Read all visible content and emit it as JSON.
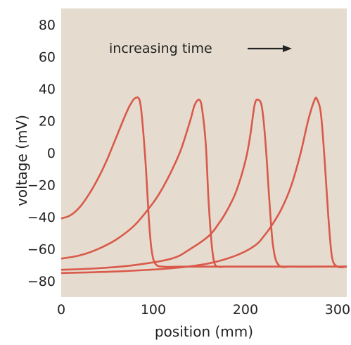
{
  "chart_data": {
    "type": "line",
    "xlabel": "position (mm)",
    "ylabel": "voltage (mV)",
    "xlim": [
      0,
      310
    ],
    "ylim": [
      -90,
      90
    ],
    "x_ticks": [
      0,
      100,
      200,
      300
    ],
    "y_ticks": [
      80,
      60,
      40,
      20,
      0,
      -20,
      -40,
      -60,
      -80
    ],
    "x_tick_labels": [
      "0",
      "100",
      "200",
      "300"
    ],
    "y_tick_labels": [
      "80",
      "60",
      "40",
      "20",
      "0",
      "−20",
      "−40",
      "−60",
      "−80"
    ],
    "grid": false,
    "annotation": {
      "text": "increasing time",
      "arrow": "right"
    },
    "colors": {
      "background": "#e5dccf",
      "line": "#d9594a"
    },
    "series": [
      {
        "x": [
          0,
          10,
          20,
          30,
          40,
          50,
          60,
          70,
          75,
          80,
          85,
          88,
          92,
          95,
          98,
          102,
          110,
          130,
          160,
          200,
          250,
          310
        ],
        "y": [
          -41,
          -39,
          -34,
          -26,
          -16,
          -4,
          10,
          24,
          30,
          34,
          33,
          20,
          -10,
          -40,
          -60,
          -69,
          -71,
          -71,
          -71,
          -71,
          -71,
          -71
        ]
      },
      {
        "x": [
          0,
          20,
          40,
          60,
          80,
          100,
          110,
          120,
          130,
          140,
          145,
          150,
          153,
          157,
          160,
          163,
          166,
          170,
          180,
          220,
          260,
          310
        ],
        "y": [
          -66,
          -64,
          -60,
          -54,
          -45,
          -31,
          -22,
          -11,
          2,
          20,
          30,
          33,
          27,
          5,
          -30,
          -55,
          -68,
          -71,
          -71,
          -71,
          -71,
          -71
        ]
      },
      {
        "x": [
          0,
          40,
          80,
          120,
          140,
          160,
          170,
          180,
          190,
          200,
          205,
          210,
          214,
          218,
          222,
          226,
          230,
          236,
          250,
          280,
          310
        ],
        "y": [
          -73,
          -72,
          -70,
          -66,
          -60,
          -52,
          -45,
          -36,
          -24,
          -5,
          10,
          30,
          33,
          28,
          5,
          -30,
          -58,
          -70,
          -71,
          -71,
          -71
        ]
      },
      {
        "x": [
          0,
          60,
          120,
          160,
          190,
          210,
          220,
          230,
          240,
          250,
          260,
          268,
          275,
          278,
          282,
          286,
          290,
          294,
          300,
          310
        ],
        "y": [
          -75,
          -74,
          -72,
          -69,
          -64,
          -58,
          -52,
          -44,
          -34,
          -20,
          0,
          20,
          33,
          33,
          24,
          -5,
          -40,
          -65,
          -71,
          -71
        ]
      }
    ]
  }
}
